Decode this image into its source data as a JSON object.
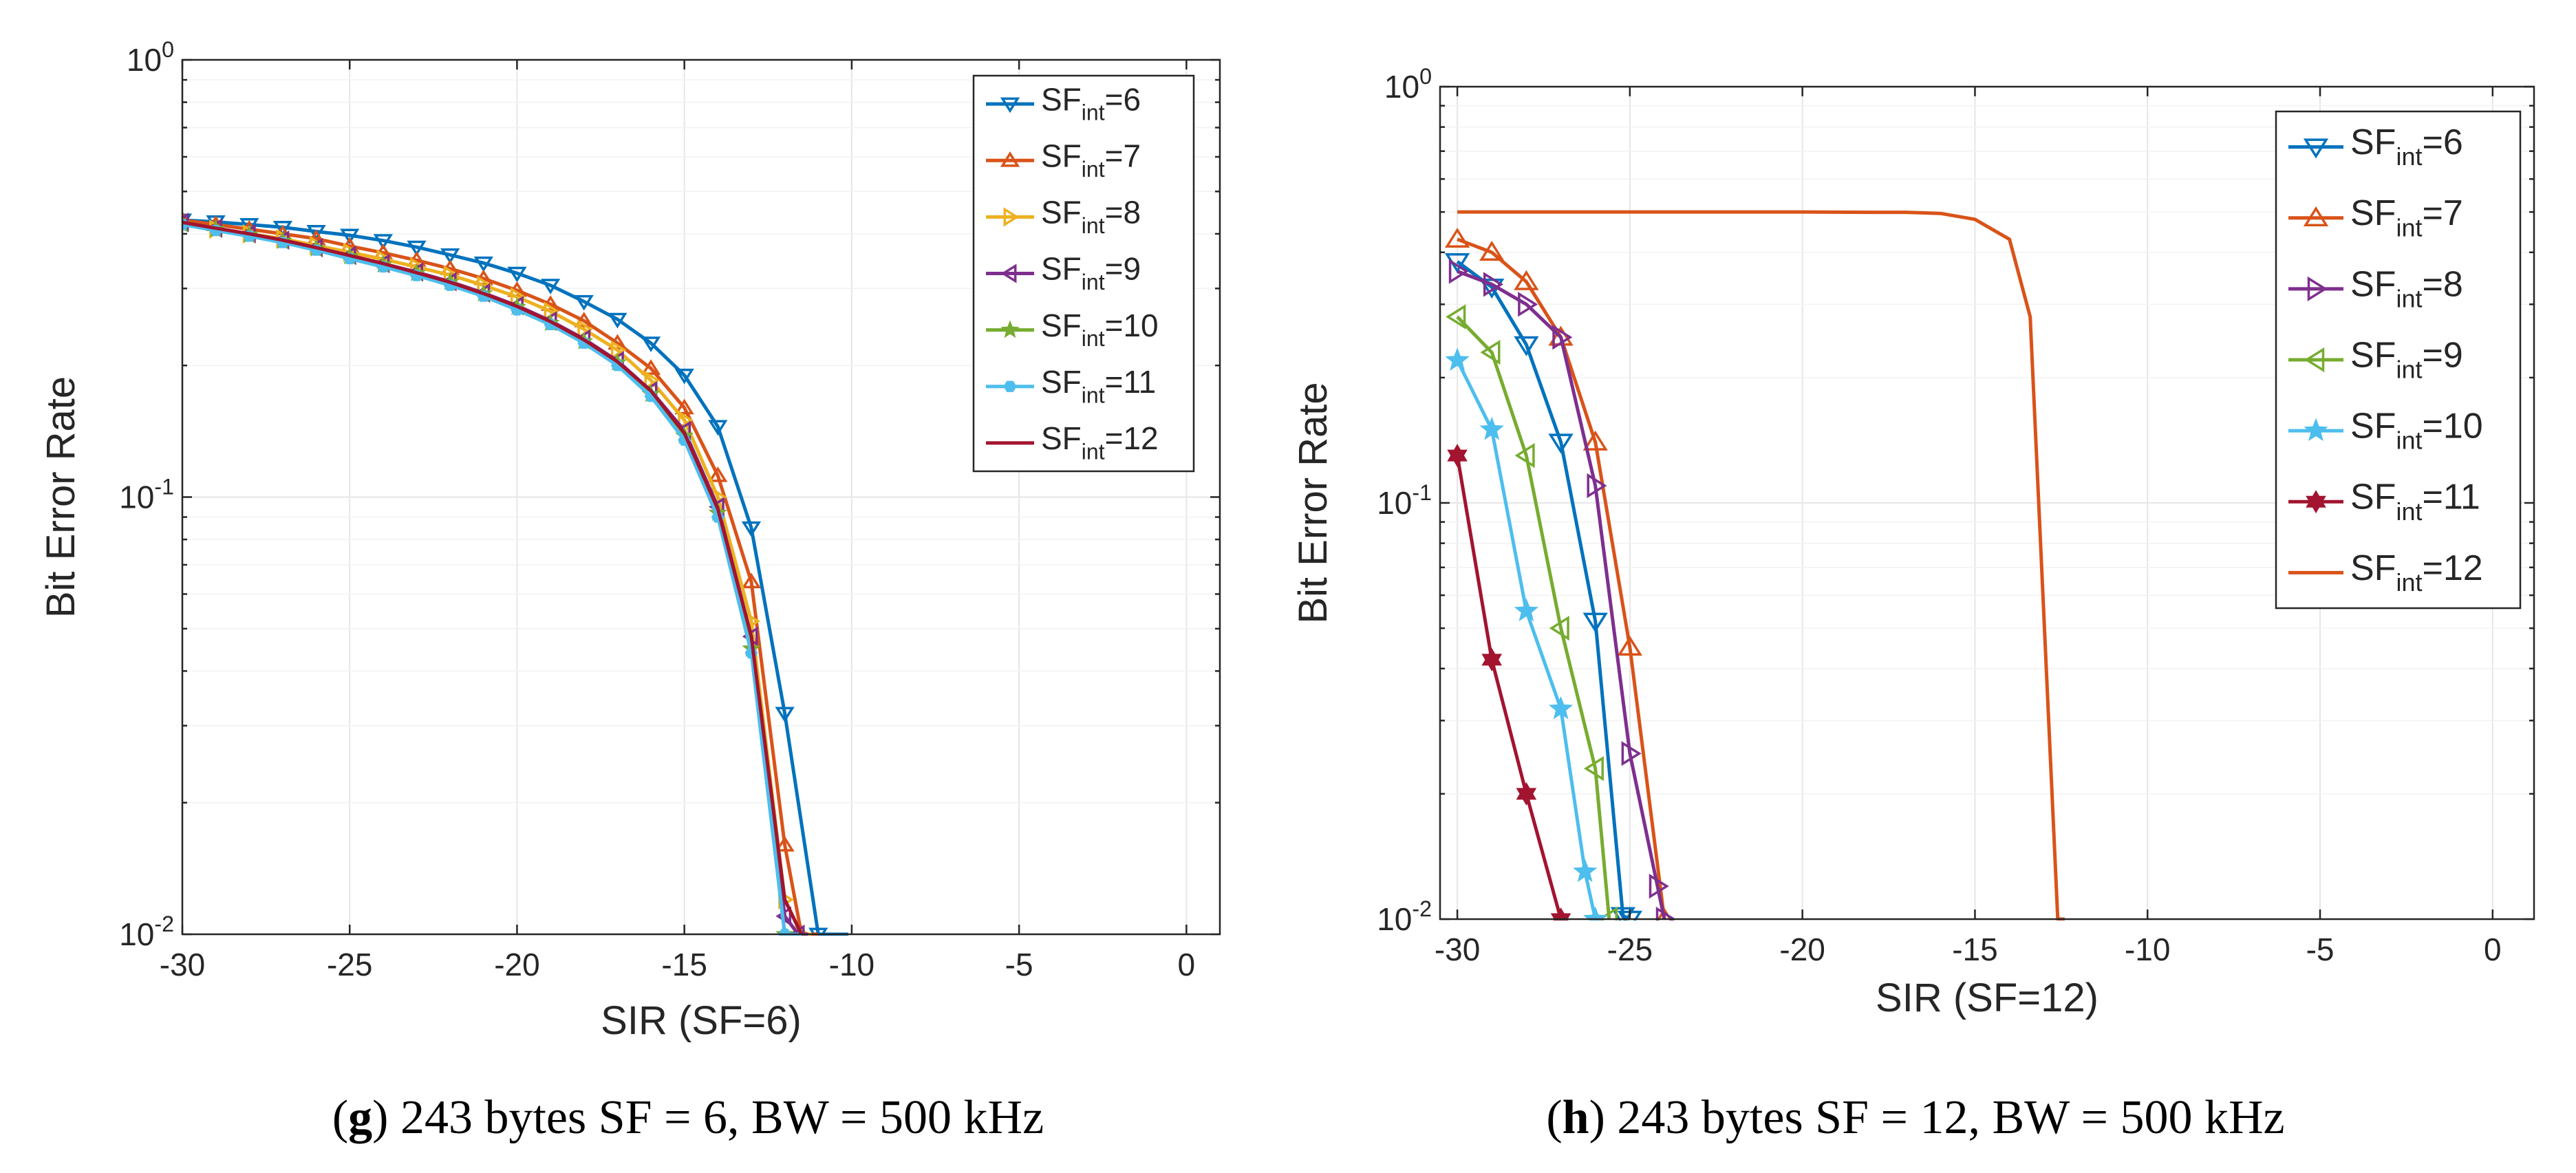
{
  "chart_data": [
    {
      "type": "line",
      "id": "g",
      "xlabel": "SIR (SF=6)",
      "ylabel": "Bit Error Rate",
      "yscale": "log",
      "xlim": [
        -30,
        1
      ],
      "ylim": [
        0.01,
        1
      ],
      "grid": true,
      "legend_position": "top-right",
      "x_ticks": [
        -30,
        -25,
        -20,
        -15,
        -10,
        -5,
        0
      ],
      "x_tick_labels": [
        "-30",
        "-25",
        "-20",
        "-15",
        "-10",
        "-5",
        "0"
      ],
      "y_ticks": [
        {
          "value": 1,
          "base": "10",
          "exp": "0"
        },
        {
          "value": 0.1,
          "base": "10",
          "exp": "-1"
        },
        {
          "value": 0.01,
          "base": "10",
          "exp": "-2"
        }
      ],
      "caption": {
        "letter": "g",
        "text": " 243 bytes SF = 6, BW = 500 kHz"
      },
      "series": [
        {
          "name": "SFint=6",
          "label_main": "SF",
          "label_sub": "int",
          "label_tail": "=6",
          "color": "#0072BD",
          "marker": "triangle-down",
          "x": [
            -30,
            -29,
            -28,
            -27,
            -26,
            -25,
            -24,
            -23,
            -22,
            -21,
            -20,
            -19,
            -18,
            -17,
            -16,
            -15,
            -14,
            -13,
            -12,
            -11,
            -10.5,
            -10.1
          ],
          "y": [
            0.43,
            0.426,
            0.42,
            0.414,
            0.405,
            0.397,
            0.386,
            0.373,
            0.358,
            0.343,
            0.325,
            0.305,
            0.28,
            0.255,
            0.225,
            0.19,
            0.145,
            0.085,
            0.032,
            0.01,
            0.01,
            0.01
          ]
        },
        {
          "name": "SFint=7",
          "label_main": "SF",
          "label_sub": "int",
          "label_tail": "=7",
          "color": "#D95319",
          "marker": "triangle-up",
          "x": [
            -30,
            -29,
            -28,
            -27,
            -26,
            -25,
            -24,
            -23,
            -22,
            -21,
            -20,
            -19,
            -18,
            -17,
            -16,
            -15,
            -14,
            -13,
            -12,
            -11.5,
            -11
          ],
          "y": [
            0.43,
            0.42,
            0.41,
            0.4,
            0.39,
            0.375,
            0.362,
            0.348,
            0.333,
            0.316,
            0.297,
            0.276,
            0.253,
            0.225,
            0.197,
            0.16,
            0.112,
            0.064,
            0.016,
            0.01,
            0.01
          ]
        },
        {
          "name": "SFint=8",
          "label_main": "SF",
          "label_sub": "int",
          "label_tail": "=8",
          "color": "#EDB120",
          "marker": "triangle-right",
          "x": [
            -30,
            -29,
            -28,
            -27,
            -26,
            -25,
            -24,
            -23,
            -22,
            -21,
            -20,
            -19,
            -18,
            -17,
            -16,
            -15,
            -14,
            -13,
            -12,
            -11.5,
            -11.2
          ],
          "y": [
            0.42,
            0.41,
            0.4,
            0.39,
            0.376,
            0.363,
            0.35,
            0.336,
            0.322,
            0.305,
            0.287,
            0.266,
            0.242,
            0.217,
            0.185,
            0.15,
            0.1,
            0.052,
            0.012,
            0.01,
            0.01
          ]
        },
        {
          "name": "SFint=9",
          "label_main": "SF",
          "label_sub": "int",
          "label_tail": "=9",
          "color": "#7E2F8E",
          "marker": "triangle-left",
          "x": [
            -30,
            -29,
            -28,
            -27,
            -26,
            -25,
            -24,
            -23,
            -22,
            -21,
            -20,
            -19,
            -18,
            -17,
            -16,
            -15,
            -14,
            -13,
            -12,
            -11.6,
            -11.3
          ],
          "y": [
            0.425,
            0.412,
            0.4,
            0.387,
            0.372,
            0.357,
            0.342,
            0.327,
            0.311,
            0.293,
            0.274,
            0.253,
            0.23,
            0.205,
            0.175,
            0.142,
            0.095,
            0.048,
            0.011,
            0.01,
            0.01
          ]
        },
        {
          "name": "SFint=10",
          "label_main": "SF",
          "label_sub": "int",
          "label_tail": "=10",
          "color": "#77AC30",
          "marker": "star",
          "x": [
            -30,
            -29,
            -28,
            -27,
            -26,
            -25,
            -24,
            -23,
            -22,
            -21,
            -20,
            -19,
            -18,
            -17,
            -16,
            -15,
            -14,
            -13,
            -12,
            -11.5
          ],
          "y": [
            0.42,
            0.41,
            0.398,
            0.385,
            0.37,
            0.355,
            0.34,
            0.325,
            0.31,
            0.292,
            0.272,
            0.25,
            0.227,
            0.203,
            0.172,
            0.138,
            0.092,
            0.045,
            0.01,
            0.01
          ]
        },
        {
          "name": "SFint=11",
          "label_main": "SF",
          "label_sub": "int",
          "label_tail": "=11",
          "color": "#4DBEEE",
          "marker": "hexagon",
          "x": [
            -30,
            -29,
            -28,
            -27,
            -26,
            -25,
            -24,
            -23,
            -22,
            -21,
            -20,
            -19,
            -18,
            -17,
            -16,
            -15,
            -14,
            -13,
            -12,
            -11.5
          ],
          "y": [
            0.42,
            0.407,
            0.395,
            0.382,
            0.367,
            0.351,
            0.336,
            0.321,
            0.305,
            0.288,
            0.268,
            0.248,
            0.225,
            0.2,
            0.17,
            0.135,
            0.09,
            0.044,
            0.01,
            0.01
          ]
        },
        {
          "name": "SFint=12",
          "label_main": "SF",
          "label_sub": "int",
          "label_tail": "=12",
          "color": "#A2142F",
          "marker": "none",
          "x": [
            -30,
            -29,
            -28,
            -27,
            -26,
            -25,
            -24,
            -23,
            -22,
            -21,
            -20,
            -19,
            -18,
            -17,
            -16,
            -15,
            -14,
            -13,
            -12,
            -11.5
          ],
          "y": [
            0.425,
            0.412,
            0.4,
            0.387,
            0.372,
            0.357,
            0.342,
            0.326,
            0.31,
            0.292,
            0.273,
            0.252,
            0.229,
            0.204,
            0.175,
            0.14,
            0.094,
            0.048,
            0.012,
            0.01
          ]
        }
      ]
    },
    {
      "type": "line",
      "id": "h",
      "xlabel": "SIR (SF=12)",
      "ylabel": "Bit Error Rate",
      "yscale": "log",
      "xlim": [
        -30.5,
        1.2
      ],
      "ylim": [
        0.01,
        1
      ],
      "grid": true,
      "legend_position": "top-right",
      "x_ticks": [
        -30,
        -25,
        -20,
        -15,
        -10,
        -5,
        0
      ],
      "x_tick_labels": [
        "-30",
        "-25",
        "-20",
        "-15",
        "-10",
        "-5",
        "0"
      ],
      "y_ticks": [
        {
          "value": 1,
          "base": "10",
          "exp": "0"
        },
        {
          "value": 0.1,
          "base": "10",
          "exp": "-1"
        },
        {
          "value": 0.01,
          "base": "10",
          "exp": "-2"
        }
      ],
      "caption": {
        "letter": "h",
        "text": " 243 bytes SF = 12, BW = 500 kHz"
      },
      "series": [
        {
          "name": "SFint=6",
          "label_main": "SF",
          "label_sub": "int",
          "label_tail": "=6",
          "color": "#0072BD",
          "marker": "triangle-down",
          "x": [
            -30,
            -29,
            -28,
            -27,
            -26,
            -25.2,
            -25
          ],
          "y": [
            0.38,
            0.33,
            0.24,
            0.14,
            0.052,
            0.0102,
            0.01
          ]
        },
        {
          "name": "SFint=7",
          "label_main": "SF",
          "label_sub": "int",
          "label_tail": "=7",
          "color": "#D95319",
          "marker": "triangle-up",
          "x": [
            -30,
            -29,
            -28,
            -27,
            -26,
            -25,
            -24
          ],
          "y": [
            0.43,
            0.4,
            0.34,
            0.25,
            0.14,
            0.045,
            0.01
          ]
        },
        {
          "name": "SFint=8",
          "label_main": "SF",
          "label_sub": "int",
          "label_tail": "=8",
          "color": "#7E2F8E",
          "marker": "triangle-right",
          "x": [
            -30,
            -29,
            -28,
            -27,
            -26,
            -25,
            -24.2,
            -24
          ],
          "y": [
            0.36,
            0.335,
            0.3,
            0.25,
            0.11,
            0.025,
            0.012,
            0.01
          ]
        },
        {
          "name": "SFint=9",
          "label_main": "SF",
          "label_sub": "int",
          "label_tail": "=9",
          "color": "#77AC30",
          "marker": "triangle-left",
          "x": [
            -30,
            -29,
            -28,
            -27,
            -26,
            -25.6
          ],
          "y": [
            0.28,
            0.23,
            0.13,
            0.05,
            0.023,
            0.01
          ]
        },
        {
          "name": "SFint=10",
          "label_main": "SF",
          "label_sub": "int",
          "label_tail": "=10",
          "color": "#4DBEEE",
          "marker": "star",
          "x": [
            -30,
            -29,
            -28,
            -27,
            -26.3,
            -26
          ],
          "y": [
            0.22,
            0.15,
            0.055,
            0.032,
            0.013,
            0.01
          ]
        },
        {
          "name": "SFint=11",
          "label_main": "SF",
          "label_sub": "int",
          "label_tail": "=11",
          "color": "#A2142F",
          "marker": "hexagram",
          "x": [
            -30,
            -29,
            -28,
            -27
          ],
          "y": [
            0.13,
            0.042,
            0.02,
            0.01
          ]
        },
        {
          "name": "SFint=12",
          "label_main": "SF",
          "label_sub": "int",
          "label_tail": "=12",
          "color": "#D95319",
          "marker": "none",
          "x": [
            -30,
            -28,
            -26,
            -24,
            -22,
            -20,
            -18,
            -17,
            -16,
            -15,
            -14,
            -13.4,
            -12.6,
            -12.4
          ],
          "y": [
            0.5,
            0.5,
            0.5,
            0.5,
            0.5,
            0.5,
            0.499,
            0.499,
            0.496,
            0.48,
            0.43,
            0.28,
            0.01,
            0.01
          ]
        }
      ]
    }
  ]
}
